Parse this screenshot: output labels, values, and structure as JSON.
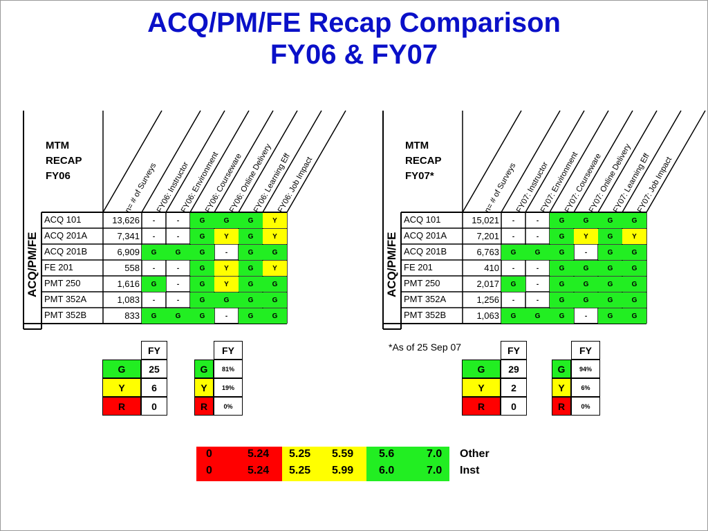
{
  "title": {
    "line1": "ACQ/PM/FE Recap Comparison",
    "line2": "FY06 & FY07"
  },
  "colors": {
    "title": "#0a10c8",
    "green": "#22ee22",
    "yellow": "#ffff00",
    "red": "#ff0000"
  },
  "fy06": {
    "header": [
      "MTM",
      "RECAP",
      "FY06"
    ],
    "side_label": "ACQ/PM/FE",
    "columns": [
      "n= # of Surveys",
      "FY06: Instructor",
      "FY06: Environment",
      "FY06: Courseware",
      "FY06: Online Delivery",
      "FY06: Learning Eff",
      "FY06: Job Impact"
    ],
    "rows": [
      {
        "course": "ACQ 101",
        "n": "13,626",
        "ratings": [
          "-",
          "-",
          "G",
          "G",
          "G",
          "Y"
        ]
      },
      {
        "course": "ACQ 201A",
        "n": "7,341",
        "ratings": [
          "-",
          "-",
          "G",
          "Y",
          "G",
          "Y"
        ]
      },
      {
        "course": "ACQ 201B",
        "n": "6,909",
        "ratings": [
          "G",
          "G",
          "G",
          "-",
          "G",
          "G"
        ]
      },
      {
        "course": "FE 201",
        "n": "558",
        "ratings": [
          "-",
          "-",
          "G",
          "Y",
          "G",
          "Y"
        ]
      },
      {
        "course": "PMT 250",
        "n": "1,616",
        "ratings": [
          "G",
          "-",
          "G",
          "Y",
          "G",
          "G"
        ]
      },
      {
        "course": "PMT 352A",
        "n": "1,083",
        "ratings": [
          "-",
          "-",
          "G",
          "G",
          "G",
          "G"
        ]
      },
      {
        "course": "PMT 352B",
        "n": "833",
        "ratings": [
          "G",
          "G",
          "G",
          "-",
          "G",
          "G"
        ]
      }
    ],
    "count_summary": {
      "header": "FY",
      "G": "25",
      "Y": "6",
      "R": "0"
    },
    "pct_summary": {
      "header": "FY",
      "G": "81%",
      "Y": "19%",
      "R": "0%"
    }
  },
  "fy07": {
    "header": [
      "MTM",
      "RECAP",
      "FY07*"
    ],
    "side_label": "ACQ/PM/FE",
    "columns": [
      "n= # of Surveys",
      "FY07: Instructor",
      "FY07: Environment",
      "FY07: Courseware",
      "FY07: Online Delivery",
      "FY07: Learning Eff",
      "FY07: Job Impact"
    ],
    "rows": [
      {
        "course": "ACQ 101",
        "n": "15,021",
        "ratings": [
          "-",
          "-",
          "G",
          "G",
          "G",
          "G"
        ]
      },
      {
        "course": "ACQ 201A",
        "n": "7,201",
        "ratings": [
          "-",
          "-",
          "G",
          "Y",
          "G",
          "Y"
        ]
      },
      {
        "course": "ACQ 201B",
        "n": "6,763",
        "ratings": [
          "G",
          "G",
          "G",
          "-",
          "G",
          "G"
        ]
      },
      {
        "course": "FE 201",
        "n": "410",
        "ratings": [
          "-",
          "-",
          "G",
          "G",
          "G",
          "G"
        ]
      },
      {
        "course": "PMT 250",
        "n": "2,017",
        "ratings": [
          "G",
          "-",
          "G",
          "G",
          "G",
          "G"
        ]
      },
      {
        "course": "PMT 352A",
        "n": "1,256",
        "ratings": [
          "-",
          "-",
          "G",
          "G",
          "G",
          "G"
        ]
      },
      {
        "course": "PMT 352B",
        "n": "1,063",
        "ratings": [
          "G",
          "G",
          "G",
          "-",
          "G",
          "G"
        ]
      }
    ],
    "note": "*As of 25 Sep 07",
    "count_summary": {
      "header": "FY",
      "G": "29",
      "Y": "2",
      "R": "0"
    },
    "pct_summary": {
      "header": "FY",
      "G": "94%",
      "Y": "6%",
      "R": "0%"
    }
  },
  "labels": {
    "G": "G",
    "Y": "Y",
    "R": "R"
  },
  "legend": [
    {
      "red_lo": "0",
      "red_hi": "5.24",
      "yellow_lo": "5.25",
      "yellow_hi": "5.59",
      "green_lo": "5.6",
      "green_hi": "7.0",
      "label": "Other"
    },
    {
      "red_lo": "0",
      "red_hi": "5.24",
      "yellow_lo": "5.25",
      "yellow_hi": "5.99",
      "green_lo": "6.0",
      "green_hi": "7.0",
      "label": "Inst"
    }
  ]
}
